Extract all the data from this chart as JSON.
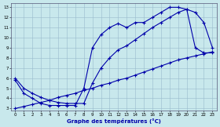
{
  "title": "Graphe des températures (°C)",
  "bg_color": "#c8e8ec",
  "grid_color": "#99bbcc",
  "line_color": "#0000aa",
  "xlim_min": -0.5,
  "xlim_max": 23.5,
  "ylim_min": 2.8,
  "ylim_max": 13.4,
  "xticks": [
    0,
    1,
    2,
    3,
    4,
    5,
    6,
    7,
    8,
    9,
    10,
    11,
    12,
    13,
    14,
    15,
    16,
    17,
    18,
    19,
    20,
    21,
    22,
    23
  ],
  "yticks": [
    3,
    4,
    5,
    6,
    7,
    8,
    9,
    10,
    11,
    12,
    13
  ],
  "curve_a_x": [
    0,
    1,
    2,
    3,
    4,
    5,
    6,
    7,
    8,
    9,
    10,
    11,
    12,
    13,
    14,
    15,
    16,
    17,
    18,
    19,
    20,
    21,
    22,
    23
  ],
  "curve_a_y": [
    6.0,
    5.0,
    4.5,
    4.1,
    3.8,
    3.6,
    3.5,
    3.5,
    3.5,
    5.5,
    7.0,
    8.0,
    8.8,
    9.2,
    9.8,
    10.4,
    11.0,
    11.5,
    12.0,
    12.5,
    12.8,
    12.5,
    11.5,
    9.0
  ],
  "curve_b_x": [
    0,
    1,
    2,
    3,
    4,
    5,
    6,
    7,
    8,
    9,
    10,
    11,
    12,
    13,
    14,
    15,
    16,
    17,
    18,
    19,
    20,
    21,
    22,
    23
  ],
  "curve_b_y": [
    5.8,
    4.5,
    4.0,
    3.5,
    3.3,
    3.3,
    3.3,
    3.3,
    5.0,
    9.0,
    10.3,
    11.0,
    11.4,
    11.0,
    11.5,
    11.5,
    12.0,
    12.5,
    13.0,
    13.0,
    12.8,
    9.0,
    8.5,
    8.5
  ],
  "curve_c_x": [
    0,
    1,
    2,
    3,
    4,
    5,
    6,
    7,
    8,
    9,
    10,
    11,
    12,
    13,
    14,
    15,
    16,
    17,
    18,
    19,
    20,
    21,
    22,
    23
  ],
  "curve_c_y": [
    3.0,
    3.2,
    3.4,
    3.6,
    3.8,
    4.1,
    4.3,
    4.5,
    4.8,
    5.0,
    5.3,
    5.5,
    5.8,
    6.0,
    6.3,
    6.6,
    6.9,
    7.2,
    7.5,
    7.8,
    8.0,
    8.2,
    8.4,
    8.6
  ]
}
